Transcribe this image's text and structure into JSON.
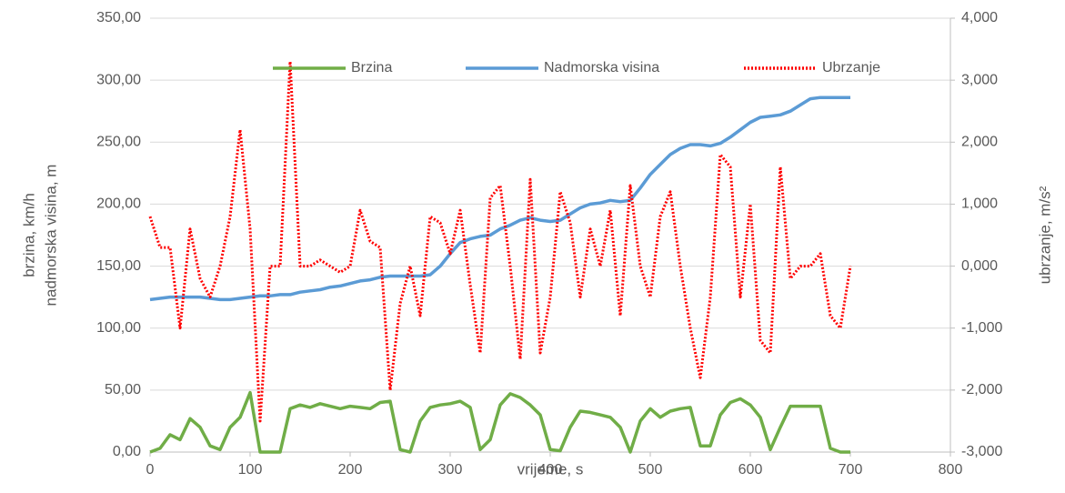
{
  "chart_data": {
    "type": "line",
    "ylabel": [
      "brzina, km/h",
      "nadmorska visina, m"
    ],
    "y2label": "ubrzanje, m/s²",
    "xlabel": "vrijeme, s",
    "x": [
      0,
      10,
      20,
      30,
      40,
      50,
      60,
      70,
      80,
      90,
      100,
      110,
      120,
      130,
      140,
      150,
      160,
      170,
      180,
      190,
      200,
      210,
      220,
      230,
      240,
      250,
      260,
      270,
      280,
      290,
      300,
      310,
      320,
      330,
      340,
      350,
      360,
      370,
      380,
      390,
      400,
      410,
      420,
      430,
      440,
      450,
      460,
      470,
      480,
      490,
      500,
      510,
      520,
      530,
      540,
      550,
      560,
      570,
      580,
      590,
      600,
      610,
      620,
      630,
      640,
      650,
      660,
      670,
      680,
      690,
      700
    ],
    "series": [
      {
        "name": "Brzina",
        "color": "#70ad47",
        "style": "solid",
        "axis": "y",
        "values": [
          0,
          3,
          14,
          10,
          27,
          20,
          5,
          2,
          20,
          28,
          48,
          0,
          0,
          0,
          35,
          38,
          36,
          39,
          37,
          35,
          37,
          36,
          35,
          40,
          41,
          2,
          0,
          25,
          36,
          38,
          39,
          41,
          36,
          2,
          10,
          38,
          47,
          44,
          38,
          30,
          2,
          1,
          20,
          33,
          32,
          30,
          28,
          20,
          0,
          25,
          35,
          28,
          33,
          35,
          36,
          5,
          5,
          30,
          40,
          43,
          38,
          28,
          2,
          20,
          37,
          37,
          37,
          37,
          3,
          0,
          0
        ]
      },
      {
        "name": "Nadmorska visina",
        "color": "#5b9bd5",
        "style": "solid",
        "axis": "y",
        "values": [
          123,
          124,
          125,
          125,
          125,
          125,
          124,
          123,
          123,
          124,
          125,
          126,
          126,
          127,
          127,
          129,
          130,
          131,
          133,
          134,
          136,
          138,
          139,
          141,
          142,
          142,
          142,
          142,
          143,
          150,
          160,
          169,
          172,
          174,
          175,
          180,
          183,
          187,
          189,
          187,
          186,
          187,
          192,
          197,
          200,
          201,
          203,
          202,
          203,
          213,
          224,
          232,
          240,
          245,
          248,
          248,
          247,
          249,
          254,
          260,
          266,
          270,
          271,
          272,
          275,
          280,
          285,
          286,
          286,
          286,
          286
        ]
      },
      {
        "name": "Ubrzanje",
        "color": "#ff0000",
        "style": "dotted",
        "axis": "y2",
        "values": [
          0.8,
          0.3,
          0.3,
          -1.0,
          0.6,
          -0.2,
          -0.5,
          0,
          0.8,
          2.2,
          0.6,
          -2.5,
          0,
          0,
          3.3,
          0,
          0,
          0.1,
          0,
          -0.1,
          0,
          0.9,
          0.4,
          0.3,
          -2.0,
          -0.6,
          0,
          -0.8,
          0.8,
          0.7,
          0.2,
          0.9,
          -0.3,
          -1.4,
          1.1,
          1.3,
          0,
          -1.5,
          1.4,
          -1.4,
          -0.5,
          1.2,
          0.7,
          -0.5,
          0.6,
          0,
          0.9,
          -0.8,
          1.3,
          0,
          -0.5,
          0.8,
          1.2,
          0,
          -1.0,
          -1.8,
          -0.5,
          1.8,
          1.6,
          -0.5,
          1.0,
          -1.2,
          -1.4,
          1.6,
          -0.2,
          0,
          0,
          0.2,
          -0.8,
          -1.0,
          0
        ]
      }
    ],
    "xlim": [
      0,
      800
    ],
    "xticks": [
      0,
      100,
      200,
      300,
      400,
      500,
      600,
      700,
      800
    ],
    "ylim": [
      0,
      350
    ],
    "yticks": [
      {
        "value": 0,
        "label": "0,00"
      },
      {
        "value": 50,
        "label": "50,00"
      },
      {
        "value": 100,
        "label": "100,00"
      },
      {
        "value": 150,
        "label": "150,00"
      },
      {
        "value": 200,
        "label": "200,00"
      },
      {
        "value": 250,
        "label": "250,00"
      },
      {
        "value": 300,
        "label": "300,00"
      },
      {
        "value": 350,
        "label": "350,00"
      }
    ],
    "y2lim": [
      -3,
      4
    ],
    "y2ticks": [
      {
        "value": -3,
        "label": "-3,000"
      },
      {
        "value": -2,
        "label": "-2,000"
      },
      {
        "value": -1,
        "label": "-1,000"
      },
      {
        "value": 0,
        "label": "0,000"
      },
      {
        "value": 1,
        "label": "1,000"
      },
      {
        "value": 2,
        "label": "2,000"
      },
      {
        "value": 3,
        "label": "3,000"
      },
      {
        "value": 4,
        "label": "4,000"
      }
    ],
    "grid": true,
    "legend": "top"
  }
}
